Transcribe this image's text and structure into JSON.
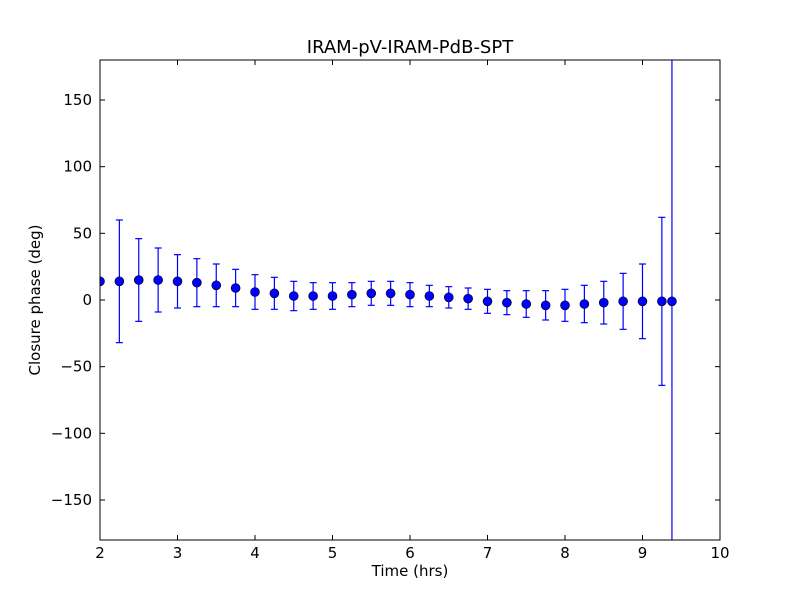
{
  "chart_data": {
    "type": "scatter",
    "title": "IRAM-pV-IRAM-PdB-SPT",
    "xlabel": "Time (hrs)",
    "ylabel": "Closure phase (deg)",
    "xlim": [
      2,
      10
    ],
    "ylim": [
      -180,
      180
    ],
    "xticks": [
      2,
      3,
      4,
      5,
      6,
      7,
      8,
      9,
      10
    ],
    "xtick_labels": [
      "2",
      "3",
      "4",
      "5",
      "6",
      "7",
      "8",
      "9",
      "10"
    ],
    "yticks": [
      150,
      100,
      50,
      0,
      -50,
      -100,
      -150
    ],
    "ytick_labels": [
      "150",
      "100",
      "50",
      "0",
      "−50",
      "−100",
      "−150"
    ],
    "grid": false,
    "legend": false,
    "marker_color": "#0000ff",
    "errorbar_color": "#0000ff",
    "series": [
      {
        "x": [
          2.0,
          2.25,
          2.5,
          2.75,
          3.0,
          3.25,
          3.5,
          3.75,
          4.0,
          4.25,
          4.5,
          4.75,
          5.0,
          5.25,
          5.5,
          5.75,
          6.0,
          6.25,
          6.5,
          6.75,
          7.0,
          7.25,
          7.5,
          7.75,
          8.0,
          8.25,
          8.5,
          8.75,
          9.0,
          9.25,
          9.38
        ],
        "y": [
          14,
          14,
          15,
          15,
          14,
          13,
          11,
          9,
          6,
          5,
          3,
          3,
          3,
          4,
          5,
          5,
          4,
          3,
          2,
          1,
          -1,
          -2,
          -3,
          -4,
          -4,
          -3,
          -2,
          -1,
          -1,
          -1,
          -1
        ],
        "yerr": [
          null,
          46,
          31,
          24,
          20,
          18,
          16,
          14,
          13,
          12,
          11,
          10,
          10,
          9,
          9,
          9,
          9,
          8,
          8,
          8,
          9,
          9,
          10,
          11,
          12,
          14,
          16,
          21,
          28,
          63,
          250
        ]
      }
    ]
  }
}
